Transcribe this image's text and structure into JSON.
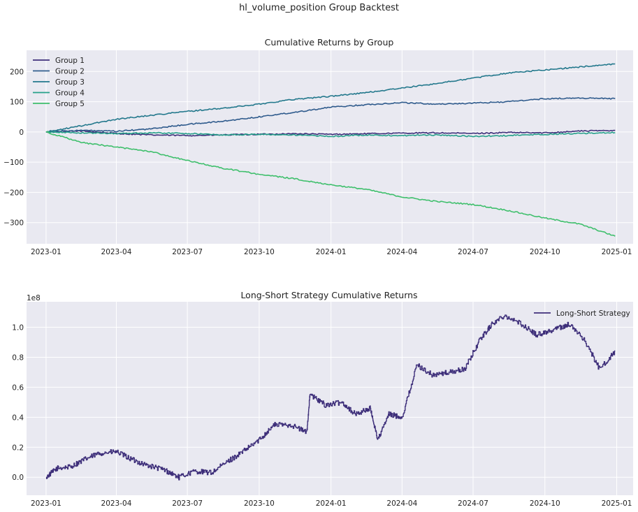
{
  "figure_title": "hl_volume_position Group Backtest",
  "colors": {
    "panel_bg": "#e9e9f1",
    "grid": "#ffffff",
    "group_1": "#3e2f7a",
    "group_2": "#2e5a8c",
    "group_3": "#23788c",
    "group_4": "#25a08a",
    "group_5": "#3fbf6c",
    "long_short": "#3e2f7a"
  },
  "chart_data": [
    {
      "type": "line",
      "title": "Cumulative Returns by Group",
      "xlabel": "",
      "ylabel": "",
      "x_ticks": [
        "2023-01",
        "2023-04",
        "2023-07",
        "2023-10",
        "2024-01",
        "2024-04",
        "2024-07",
        "2024-10",
        "2025-01"
      ],
      "y_ticks": [
        "200",
        "100",
        "0",
        "−100",
        "−200",
        "−300"
      ],
      "ylim": [
        -370,
        270
      ],
      "grid": true,
      "legend_position": "top-left",
      "x": [
        "2023-01-01",
        "2023-02-15",
        "2023-04-01",
        "2023-05-15",
        "2023-07-01",
        "2023-08-15",
        "2023-10-01",
        "2023-11-15",
        "2024-01-01",
        "2024-02-15",
        "2024-04-01",
        "2024-05-15",
        "2024-07-01",
        "2024-08-15",
        "2024-10-01",
        "2024-11-15",
        "2024-12-30"
      ],
      "series": [
        {
          "name": "Group 1",
          "values": [
            0,
            3,
            -5,
            -10,
            -12,
            -10,
            -8,
            -6,
            -8,
            -6,
            -4,
            -3,
            -5,
            -2,
            -3,
            3,
            5
          ]
        },
        {
          "name": "Group 2",
          "values": [
            0,
            5,
            2,
            10,
            25,
            35,
            50,
            65,
            82,
            90,
            97,
            92,
            95,
            100,
            110,
            112,
            110
          ]
        },
        {
          "name": "Group 3",
          "values": [
            0,
            20,
            42,
            55,
            68,
            78,
            92,
            108,
            118,
            130,
            145,
            160,
            178,
            195,
            205,
            215,
            225
          ]
        },
        {
          "name": "Group 4",
          "values": [
            0,
            -3,
            -5,
            -3,
            -5,
            -10,
            -8,
            -10,
            -15,
            -10,
            -12,
            -10,
            -15,
            -12,
            -8,
            -5,
            -2
          ]
        },
        {
          "name": "Group 5",
          "values": [
            0,
            -35,
            -50,
            -65,
            -95,
            -120,
            -140,
            -155,
            -175,
            -190,
            -215,
            -230,
            -240,
            -260,
            -285,
            -305,
            -345
          ]
        }
      ]
    },
    {
      "type": "line",
      "title": "Long-Short Strategy Cumulative Returns",
      "xlabel": "",
      "ylabel": "",
      "scale_label": "1e8",
      "x_ticks": [
        "2023-01",
        "2023-04",
        "2023-07",
        "2023-10",
        "2024-01",
        "2024-04",
        "2024-07",
        "2024-10",
        "2025-01"
      ],
      "y_ticks": [
        "1.0",
        "0.8",
        "0.6",
        "0.4",
        "0.2",
        "0.0"
      ],
      "ylim": [
        -0.12,
        1.17
      ],
      "grid": true,
      "legend_position": "top-right",
      "x": [
        "2023-01-01",
        "2023-01-15",
        "2023-02-01",
        "2023-02-20",
        "2023-03-10",
        "2023-04-01",
        "2023-04-20",
        "2023-05-10",
        "2023-06-01",
        "2023-06-20",
        "2023-07-10",
        "2023-08-01",
        "2023-08-20",
        "2023-09-10",
        "2023-10-01",
        "2023-10-20",
        "2023-11-10",
        "2023-12-01",
        "2023-12-05",
        "2023-12-25",
        "2024-01-15",
        "2024-02-01",
        "2024-02-20",
        "2024-03-01",
        "2024-03-15",
        "2024-04-01",
        "2024-04-20",
        "2024-05-10",
        "2024-06-01",
        "2024-06-20",
        "2024-07-10",
        "2024-07-25",
        "2024-08-10",
        "2024-09-01",
        "2024-09-20",
        "2024-10-10",
        "2024-11-01",
        "2024-11-20",
        "2024-12-10",
        "2024-12-30"
      ],
      "series": [
        {
          "name": "Long-Short Strategy",
          "values": [
            0.0,
            0.06,
            0.07,
            0.12,
            0.16,
            0.17,
            0.12,
            0.08,
            0.05,
            0.0,
            0.04,
            0.03,
            0.1,
            0.17,
            0.25,
            0.35,
            0.35,
            0.3,
            0.55,
            0.48,
            0.5,
            0.42,
            0.46,
            0.25,
            0.42,
            0.4,
            0.75,
            0.68,
            0.7,
            0.72,
            0.92,
            1.02,
            1.08,
            1.02,
            0.95,
            0.98,
            1.02,
            0.92,
            0.72,
            0.84
          ]
        }
      ]
    }
  ]
}
